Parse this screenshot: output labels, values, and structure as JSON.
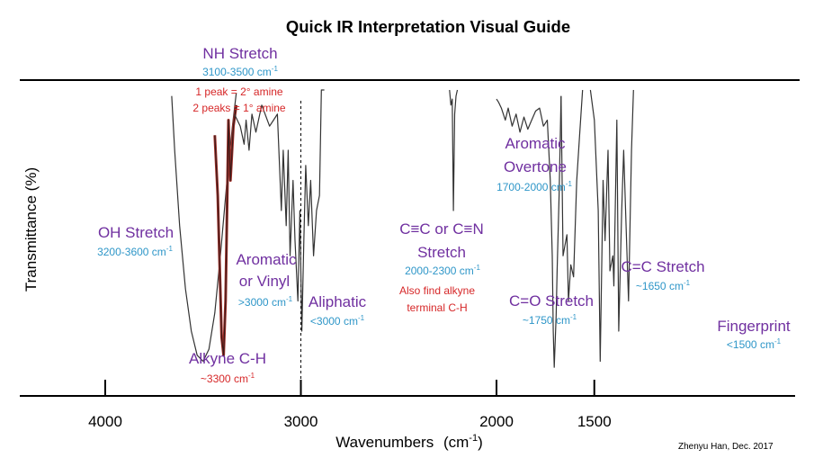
{
  "chart_data": {
    "type": "line",
    "title": "Quick IR Interpretation Visual Guide",
    "ylabel": "Transmittance (%)",
    "xlabel": "Wavenumbers",
    "xlabel_unit": "(cm",
    "xlabel_unit_exp": "-1",
    "xlabel_unit_close": ")",
    "xlim": [
      4450,
      1250
    ],
    "ylim": [
      0,
      100
    ],
    "x_inverted": true,
    "xticks": [
      4000,
      3000,
      2000,
      1500
    ],
    "xtick_labels": [
      "4000",
      "3000",
      "2000",
      "1500"
    ],
    "grid": false,
    "credit": "Zhenyu Han, Dec. 2017",
    "colors": {
      "title": "#000000",
      "group_name": "#7030a0",
      "range": "#2e96c8",
      "note": "#d62728",
      "spectrum": "#333333",
      "nh_highlight": "#a0302a",
      "axis": "#000000"
    },
    "marker": {
      "x": 3000,
      "style": "dashed"
    },
    "series": [
      {
        "id": "oh",
        "x": [
          3660,
          3645,
          3620,
          3590,
          3560,
          3530,
          3500,
          3470,
          3440,
          3410,
          3380,
          3350,
          3330
        ],
        "y": [
          98,
          80,
          55,
          34,
          20,
          12,
          10,
          14,
          26,
          46,
          68,
          88,
          99
        ]
      },
      {
        "id": "nh",
        "x": [
          3440,
          3425,
          3405,
          3395,
          3385,
          3370,
          3360,
          3345,
          3330
        ],
        "y": [
          85,
          65,
          18,
          12,
          30,
          90,
          70,
          88,
          95
        ]
      },
      {
        "id": "ch",
        "x": [
          3340,
          3310,
          3290,
          3280,
          3265,
          3250,
          3230,
          3200,
          3160,
          3140,
          3120,
          3100,
          3090,
          3075,
          3065,
          3055,
          3040,
          3030,
          3015,
          3005,
          2995,
          2985,
          2975,
          2962,
          2950,
          2935,
          2920,
          2905,
          2895,
          2880
        ],
        "y": [
          92,
          88,
          82,
          90,
          80,
          92,
          86,
          95,
          88,
          90,
          92,
          60,
          80,
          55,
          80,
          45,
          70,
          50,
          30,
          60,
          20,
          50,
          75,
          55,
          70,
          45,
          60,
          65,
          100,
          100
        ]
      },
      {
        "id": "alkyne",
        "x": [
          2240,
          2233,
          2226,
          2220,
          2214,
          2207,
          2200
        ],
        "y": [
          100,
          95,
          97,
          60,
          92,
          98,
          100
        ]
      },
      {
        "id": "overtone",
        "x": [
          2000,
          1990,
          1975,
          1955,
          1940,
          1920,
          1900,
          1880,
          1860,
          1840,
          1820,
          1800,
          1780,
          1760,
          1740,
          1725,
          1715,
          1710,
          1705,
          1695,
          1690,
          1680,
          1670
        ],
        "y": [
          97,
          96,
          94,
          90,
          94,
          88,
          92,
          86,
          91,
          87,
          90,
          93,
          94,
          88,
          90,
          70,
          45,
          20,
          8,
          25,
          40,
          65,
          98
        ]
      },
      {
        "id": "co_cc",
        "x": [
          1670,
          1660,
          1640,
          1632,
          1620,
          1606,
          1590,
          1575,
          1560
        ],
        "y": [
          98,
          45,
          52,
          30,
          42,
          38,
          70,
          85,
          100
        ]
      },
      {
        "id": "fingerprint",
        "x": [
          1520,
          1500,
          1480,
          1470,
          1455,
          1445,
          1430,
          1420,
          1405,
          1400,
          1385,
          1375,
          1360,
          1350,
          1335,
          1325,
          1310,
          1300
        ],
        "y": [
          100,
          90,
          60,
          10,
          70,
          50,
          80,
          40,
          45,
          35,
          90,
          20,
          60,
          80,
          50,
          30,
          80,
          100
        ]
      }
    ],
    "annotations": [
      {
        "id": "nh-stretch",
        "name": "NH Stretch",
        "range_main": "3100-3500 cm",
        "range_exp": "-1",
        "notes": [
          "1 peak = 2° amine",
          "2 peaks = 1° amine"
        ]
      },
      {
        "id": "oh-stretch",
        "name": "OH Stretch",
        "range_main": "3200-3600 cm",
        "range_exp": "-1"
      },
      {
        "id": "aromatic-vinyl",
        "name_lines": [
          "Aromatic",
          "or Vinyl"
        ],
        "range_main": ">3000 cm",
        "range_exp": "-1"
      },
      {
        "id": "aliphatic",
        "name": "Aliphatic",
        "range_main": "<3000 cm",
        "range_exp": "-1"
      },
      {
        "id": "alkyne-ch",
        "name": "Alkyne C-H",
        "range_main": "~3300 cm",
        "range_exp": "-1"
      },
      {
        "id": "triple-bond",
        "name_lines": [
          "C≡C or C≡N",
          "Stretch"
        ],
        "range_main": "2000-2300 cm",
        "range_exp": "-1",
        "notes": [
          "Also find alkyne",
          "terminal C-H"
        ]
      },
      {
        "id": "aromatic-overtone",
        "name_lines": [
          "Aromatic",
          "Overtone"
        ],
        "range_main": "1700-2000 cm",
        "range_exp": "-1"
      },
      {
        "id": "co-stretch",
        "name": "C=O Stretch",
        "range_main": "~1750 cm",
        "range_exp": "-1"
      },
      {
        "id": "cc-stretch",
        "name": "C=C Stretch",
        "range_main": "~1650 cm",
        "range_exp": "-1"
      },
      {
        "id": "fingerprint",
        "name": "Fingerprint",
        "range_main": "<1500 cm",
        "range_exp": "-1"
      }
    ]
  }
}
